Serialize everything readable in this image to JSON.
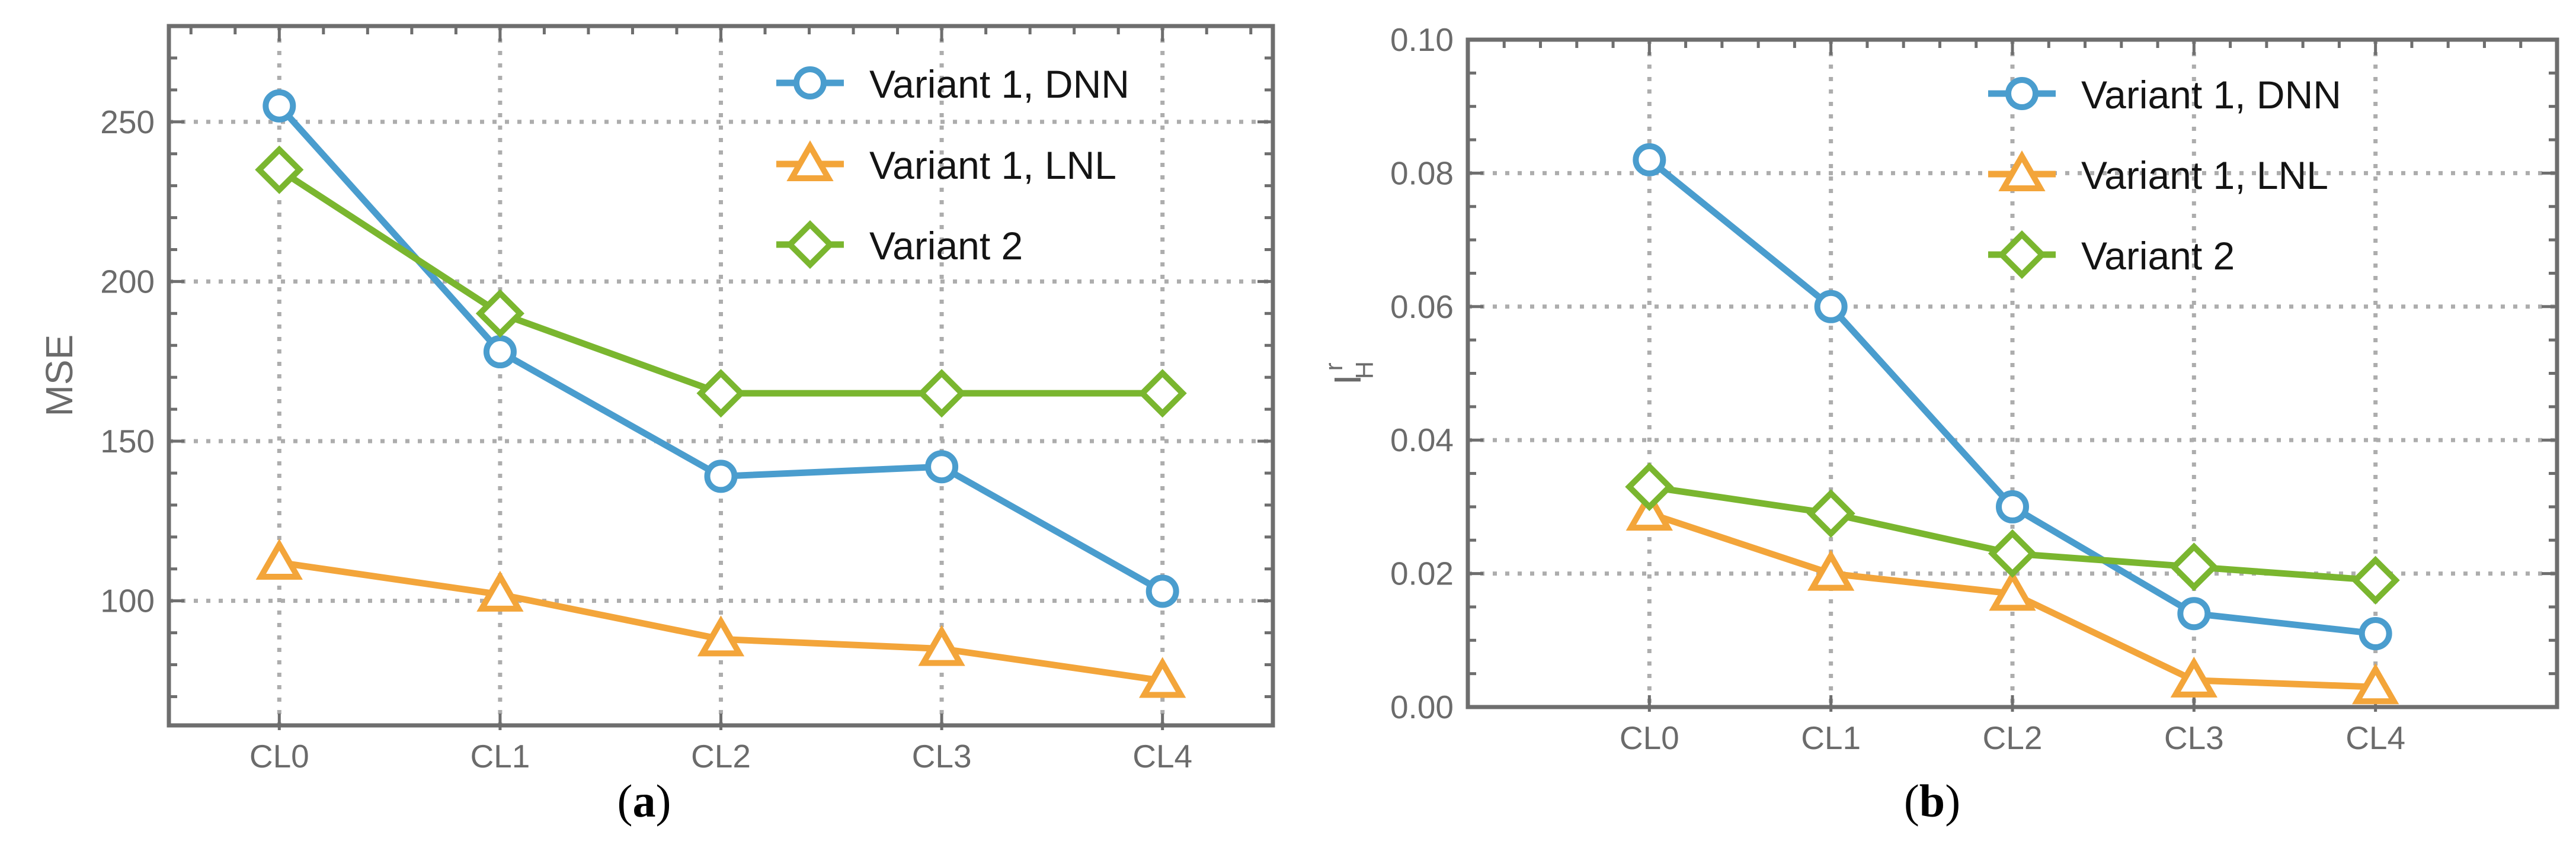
{
  "figure": {
    "background": "#ffffff",
    "axis_color": "#6e6e6e",
    "grid_color": "#adadad",
    "tick_label_color": "#6b6b6b",
    "legend_text_color": "#141414",
    "captions": [
      {
        "prefix": "(",
        "letter": "a",
        "suffix": ")"
      },
      {
        "prefix": "(",
        "letter": "b",
        "suffix": ")"
      }
    ]
  },
  "chart_data": [
    {
      "type": "line",
      "title": "",
      "xlabel": "",
      "ylabel": "MSE",
      "categories": [
        "CL0",
        "CL1",
        "CL2",
        "CL3",
        "CL4"
      ],
      "series": [
        {
          "name": "Variant 1, DNN",
          "marker": "circle",
          "color": "#4A9DCE",
          "values": [
            255,
            178,
            139,
            142,
            103
          ]
        },
        {
          "name": "Variant 1, LNL",
          "marker": "triangle",
          "color": "#F3A53A",
          "values": [
            112,
            102,
            88,
            85,
            75
          ]
        },
        {
          "name": "Variant 2",
          "marker": "diamond",
          "color": "#7AB62F",
          "values": [
            235,
            190,
            165,
            165,
            165
          ]
        }
      ],
      "ylim": [
        61,
        280
      ],
      "yticks": [
        {
          "v": 100,
          "label": "100"
        },
        {
          "v": 150,
          "label": "150"
        },
        {
          "v": 200,
          "label": "200"
        },
        {
          "v": 250,
          "label": "250"
        }
      ],
      "y_minor_step": 10,
      "x_margin": "half",
      "grid": true,
      "legend_position": "top-right"
    },
    {
      "type": "line",
      "title": "",
      "xlabel": "",
      "ylabel": "I",
      "ylabel_sup": "r",
      "ylabel_sub": "H",
      "categories": [
        "CL0",
        "CL1",
        "CL2",
        "CL3",
        "CL4"
      ],
      "series": [
        {
          "name": "Variant 1, DNN",
          "marker": "circle",
          "color": "#4A9DCE",
          "values": [
            0.082,
            0.06,
            0.03,
            0.014,
            0.011
          ]
        },
        {
          "name": "Variant 1, LNL",
          "marker": "triangle",
          "color": "#F3A53A",
          "values": [
            0.029,
            0.02,
            0.017,
            0.004,
            0.003
          ]
        },
        {
          "name": "Variant 2",
          "marker": "diamond",
          "color": "#7AB62F",
          "values": [
            0.033,
            0.029,
            0.023,
            0.021,
            0.019
          ]
        }
      ],
      "ylim": [
        0.0,
        0.1
      ],
      "yticks": [
        {
          "v": 0.0,
          "label": "0.00"
        },
        {
          "v": 0.02,
          "label": "0.02"
        },
        {
          "v": 0.04,
          "label": "0.04"
        },
        {
          "v": 0.06,
          "label": "0.06"
        },
        {
          "v": 0.08,
          "label": "0.08"
        },
        {
          "v": 0.1,
          "label": "0.10"
        }
      ],
      "y_minor_step": 0.005,
      "x_margin": "full",
      "grid": true,
      "legend_position": "top-right"
    }
  ]
}
